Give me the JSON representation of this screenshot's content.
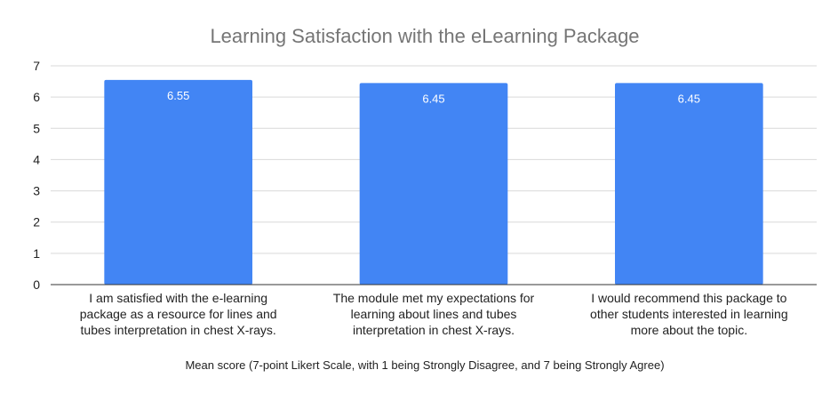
{
  "chart_data": {
    "type": "bar",
    "title": "Learning Satisfaction with the eLearning Package",
    "xlabel": "Mean score (7-point Likert Scale, with 1 being Strongly Disagree, and 7 being Strongly Agree)",
    "ylabel": "",
    "ylim": [
      0,
      7
    ],
    "yticks": [
      "0",
      "1",
      "2",
      "3",
      "4",
      "5",
      "6",
      "7"
    ],
    "grid": true,
    "bar_color": "#4285f4",
    "categories": [
      [
        "I am satisfied with the e-learning",
        "package as a resource for lines and",
        "tubes interpretation in chest X-rays."
      ],
      [
        "The module met my expectations for",
        "learning about lines and tubes",
        "interpretation in chest X-rays."
      ],
      [
        "I would recommend this package to",
        "other students interested in learning",
        "more about the topic."
      ]
    ],
    "values": [
      6.55,
      6.45,
      6.45
    ],
    "data_labels": [
      "6.55",
      "6.45",
      "6.45"
    ]
  }
}
